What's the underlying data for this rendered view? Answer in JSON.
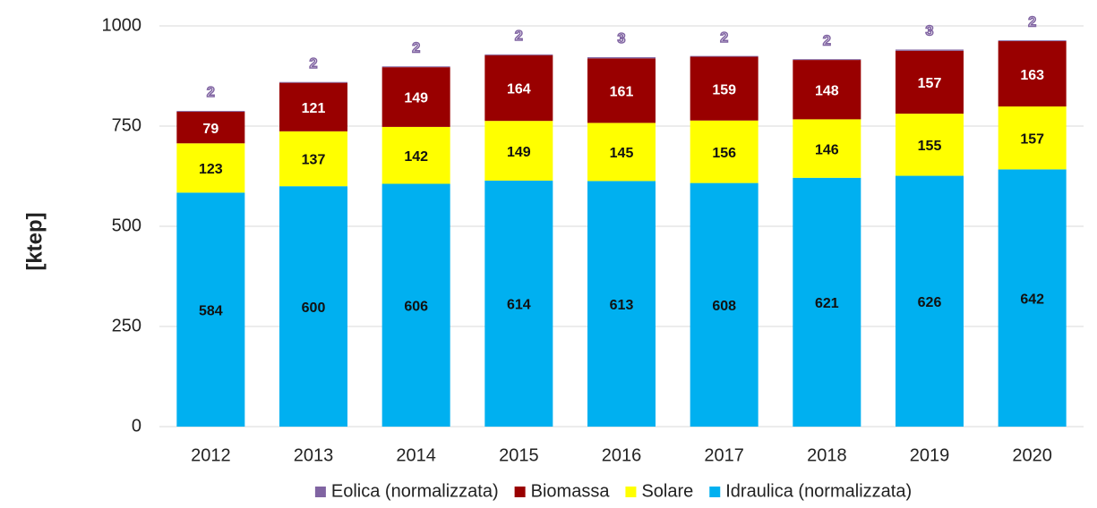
{
  "chart_data": {
    "type": "stacked_bar",
    "y_label": "[ktep]",
    "categories": [
      "2012",
      "2013",
      "2014",
      "2015",
      "2016",
      "2017",
      "2018",
      "2019",
      "2020"
    ],
    "series": [
      {
        "name": "Idraulica (normalizzata)",
        "color": "#00b0f0",
        "values": [
          584,
          600,
          606,
          614,
          613,
          608,
          621,
          626,
          642
        ]
      },
      {
        "name": "Solare",
        "color": "#ffff00",
        "values": [
          123,
          137,
          142,
          149,
          145,
          156,
          146,
          155,
          157
        ]
      },
      {
        "name": "Biomassa",
        "color": "#990000",
        "values": [
          79,
          121,
          149,
          164,
          161,
          159,
          148,
          157,
          163
        ]
      },
      {
        "name": "Eolica (normalizzata)",
        "color": "#8064a2",
        "values": [
          2,
          2,
          2,
          2,
          3,
          2,
          2,
          3,
          2
        ]
      }
    ],
    "ylim": [
      0,
      1000
    ],
    "yticks": [
      0,
      250,
      500,
      750,
      1000
    ],
    "grid": true,
    "legend": "bottom"
  }
}
